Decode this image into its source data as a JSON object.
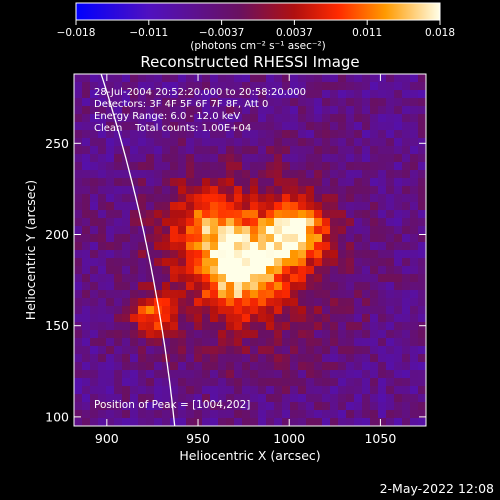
{
  "colorbar": {
    "ticks": [
      "−0.018",
      "−0.011",
      "−0.0037",
      "0.0037",
      "0.011",
      "0.018"
    ],
    "units": "(photons cm⁻² s⁻¹ asec⁻²)"
  },
  "chart_data": {
    "type": "heatmap",
    "title": "Reconstructed RHESSI Image",
    "xlabel": "Heliocentric X (arcsec)",
    "ylabel": "Heliocentric Y (arcsec)",
    "xlim": [
      882,
      1075
    ],
    "ylim": [
      95,
      288
    ],
    "x_ticks": [
      900,
      950,
      1000,
      1050
    ],
    "y_ticks": [
      100,
      150,
      200,
      250
    ],
    "color_range": [
      -0.018,
      0.018
    ],
    "colormap": "blue-purple-red-orange-yellow-white",
    "annotations": [
      "28-Jul-2004 20:52:20.000 to 20:58:20.000",
      "Detectors: 3F 4F 5F 6F 7F 8F, Att 0",
      "Energy Range: 6.0 - 12.0 keV",
      "Clean    Total counts: 1.00E+04"
    ],
    "peak_label": "Position of Peak = [1004,202]",
    "peak": [
      1004,
      202
    ],
    "sources": [
      {
        "x": 1004,
        "y": 202,
        "amp": 0.018
      },
      {
        "x": 975,
        "y": 180,
        "amp": 0.015
      },
      {
        "x": 925,
        "y": 155,
        "amp": 0.013
      },
      {
        "x": 955,
        "y": 205,
        "amp": 0.01
      }
    ]
  },
  "footer": {
    "date": "2-May-2022 12:08"
  }
}
